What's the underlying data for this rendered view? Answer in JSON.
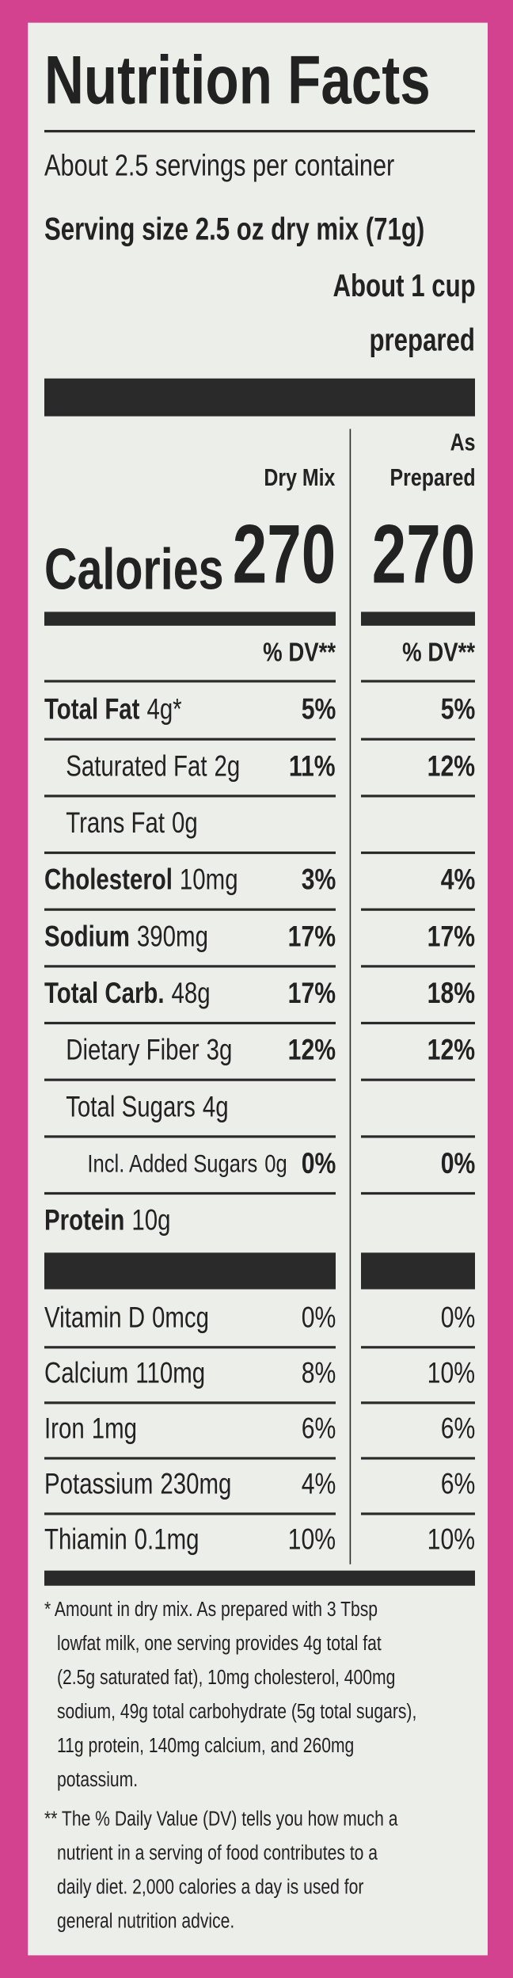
{
  "title": "Nutrition Facts",
  "servings": "About 2.5 servings per container",
  "serving_size": "Serving size 2.5 oz dry mix (71g)",
  "serving_size_prepared": [
    "About 1 cup",
    "prepared"
  ],
  "columns": {
    "dry": "Dry Mix",
    "prepared": [
      "As",
      "Prepared"
    ]
  },
  "calories": {
    "label": "Calories",
    "dry": 270,
    "prepared": 270
  },
  "dv_header": "% DV**",
  "nutrients": [
    {
      "name": "Total Fat",
      "amount": "4g*",
      "dry": "5%",
      "prepared": "5%"
    },
    {
      "name": "Saturated Fat",
      "amount": "2g",
      "dry": "11%",
      "prepared": "12%"
    },
    {
      "name": "Trans Fat",
      "amount": "0g",
      "dry": null,
      "prepared": null
    },
    {
      "name": "Cholesterol",
      "amount": "10mg",
      "dry": "3%",
      "prepared": "4%"
    },
    {
      "name": "Sodium",
      "amount": "390mg",
      "dry": "17%",
      "prepared": "17%"
    },
    {
      "name": "Total Carb.",
      "amount": "48g",
      "dry": "17%",
      "prepared": "18%"
    },
    {
      "name": "Dietary Fiber",
      "amount": "3g",
      "dry": "12%",
      "prepared": "12%"
    },
    {
      "name": "Total Sugars",
      "amount": "4g",
      "dry": null,
      "prepared": null
    },
    {
      "name": "Incl. Added Sugars",
      "amount": "0g",
      "dry": "0%",
      "prepared": "0%"
    },
    {
      "name": "Protein",
      "amount": "10g",
      "dry": null,
      "prepared": null
    }
  ],
  "vitamins": [
    {
      "name": "Vitamin D",
      "amount": "0mcg",
      "dry": "0%",
      "prepared": "0%"
    },
    {
      "name": "Calcium",
      "amount": "110mg",
      "dry": "8%",
      "prepared": "10%"
    },
    {
      "name": "Iron",
      "amount": "1mg",
      "dry": "6%",
      "prepared": "6%"
    },
    {
      "name": "Potassium",
      "amount": "230mg",
      "dry": "4%",
      "prepared": "6%"
    },
    {
      "name": "Thiamin",
      "amount": "0.1mg",
      "dry": "10%",
      "prepared": "10%"
    }
  ],
  "footnotes": [
    [
      "* Amount in dry mix. As prepared with 3 Tbsp",
      "lowfat milk, one serving provides 4g total fat",
      "(2.5g saturated fat), 10mg cholesterol, 400mg",
      "sodium, 49g total carbohydrate (5g total sugars),",
      "11g protein, 140mg calcium, and 260mg",
      "potassium."
    ],
    [
      "** The % Daily Value (DV) tells you how much a",
      "nutrient in a serving of food contributes to a",
      "daily diet. 2,000 calories a day is used for",
      "general nutrition advice."
    ]
  ]
}
